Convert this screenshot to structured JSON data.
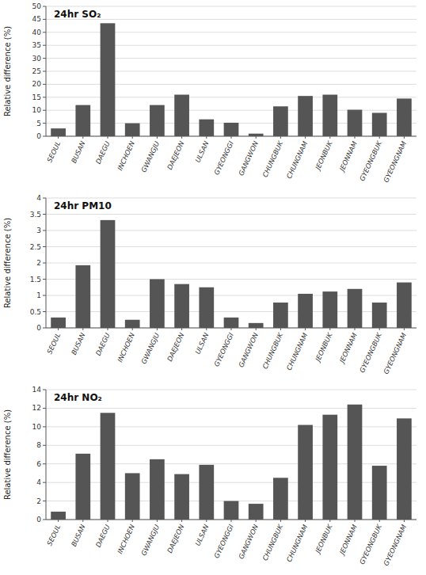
{
  "chart_data": [
    {
      "type": "bar",
      "title": "24hr SO₂",
      "ylabel": "Relative difference (%)",
      "categories": [
        "SEOUL",
        "BUSAN",
        "DAEGU",
        "INCHOEN",
        "GWANGJU",
        "DAEJEON",
        "ULSAN",
        "GYEONGGI",
        "GANGWON",
        "CHUNGBUK",
        "CHUNGNAM",
        "JEONBUK",
        "JEONNAM",
        "GYEONGBUK",
        "GYEONGNAM"
      ],
      "values": [
        3.0,
        12.0,
        43.5,
        5.0,
        12.0,
        16.0,
        6.5,
        5.2,
        1.0,
        11.5,
        15.5,
        16.0,
        10.2,
        9.0,
        14.5
      ],
      "color": "#555555",
      "ylim": [
        0,
        50
      ],
      "yticks": [
        0,
        5,
        10,
        15,
        20,
        25,
        30,
        35,
        40,
        45,
        50
      ],
      "grid": true
    },
    {
      "type": "bar",
      "title": "24hr PM10",
      "ylabel": "Relative difference (%)",
      "categories": [
        "SEOUL",
        "BUSAN",
        "DAEGU",
        "INCHOEN",
        "GWANGJU",
        "DAEJEON",
        "ULSAN",
        "GYEONGGI",
        "GANGWON",
        "CHUNGBUK",
        "CHUNGNAM",
        "JEONBUK",
        "JEONNAM",
        "GYEONGBUK",
        "GYEONGNAM"
      ],
      "values": [
        0.32,
        1.93,
        3.32,
        0.25,
        1.5,
        1.35,
        1.25,
        0.32,
        0.15,
        0.78,
        1.05,
        1.12,
        1.2,
        0.78,
        1.4
      ],
      "color": "#555555",
      "ylim": [
        0,
        4
      ],
      "yticks": [
        0,
        0.5,
        1,
        1.5,
        2,
        2.5,
        3,
        3.5,
        4
      ],
      "grid": true
    },
    {
      "type": "bar",
      "title": "24hr NO₂",
      "ylabel": "Relative difference (%)",
      "categories": [
        "SEOUL",
        "BUSAN",
        "DAEGU",
        "INCHOEN",
        "GWANGJU",
        "DAEJEON",
        "ULSAN",
        "GYEONGGI",
        "GANGWON",
        "CHUNGBUK",
        "CHUNGNAM",
        "JEONBUK",
        "JEONNAM",
        "GYEONGBUK",
        "GYEONGNAM"
      ],
      "values": [
        0.85,
        7.1,
        11.5,
        5.0,
        6.5,
        4.9,
        5.9,
        2.0,
        1.7,
        4.5,
        10.2,
        11.3,
        12.4,
        5.8,
        10.9
      ],
      "color": "#555555",
      "ylim": [
        0,
        14
      ],
      "yticks": [
        0,
        2,
        4,
        6,
        8,
        10,
        12,
        14
      ],
      "grid": true
    }
  ]
}
